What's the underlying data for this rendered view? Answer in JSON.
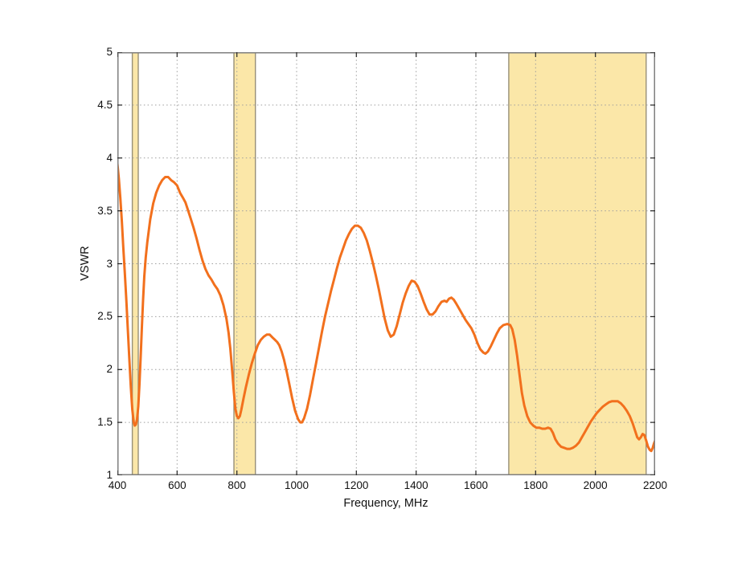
{
  "page": {
    "background": "#ffffff"
  },
  "chart_data": {
    "type": "line",
    "title": "",
    "xlabel": "Frequency, MHz",
    "ylabel": "VSWR",
    "xlim": [
      400,
      2200
    ],
    "ylim": [
      1,
      5
    ],
    "x_ticks": [
      400,
      600,
      800,
      1000,
      1200,
      1400,
      1600,
      1800,
      2000,
      2200
    ],
    "y_ticks": [
      "1",
      "1.5",
      "2",
      "2.5",
      "3",
      "3.5",
      "4",
      "4.5",
      "5"
    ],
    "grid": "dotted",
    "legend_position": "none",
    "colors": {
      "curve": "#F2701D",
      "band_fill": "#FBE7A8",
      "band_edge": "#989078",
      "grid": "#9E9E9E",
      "border": "#7F7F7F",
      "tick": "#222222",
      "text": "#111111"
    },
    "highlight_bands": [
      {
        "from": 450,
        "to": 470
      },
      {
        "from": 790,
        "to": 862
      },
      {
        "from": 1710,
        "to": 2170
      }
    ],
    "series": [
      {
        "name": "VSWR",
        "color": "#F2701D",
        "points": [
          [
            400,
            3.95
          ],
          [
            405,
            3.8
          ],
          [
            410,
            3.62
          ],
          [
            415,
            3.4
          ],
          [
            420,
            3.15
          ],
          [
            425,
            2.91
          ],
          [
            430,
            2.65
          ],
          [
            435,
            2.38
          ],
          [
            440,
            2.1
          ],
          [
            445,
            1.84
          ],
          [
            450,
            1.62
          ],
          [
            455,
            1.5
          ],
          [
            458,
            1.47
          ],
          [
            462,
            1.48
          ],
          [
            466,
            1.53
          ],
          [
            470,
            1.65
          ],
          [
            474,
            1.86
          ],
          [
            478,
            2.12
          ],
          [
            482,
            2.4
          ],
          [
            486,
            2.66
          ],
          [
            490,
            2.88
          ],
          [
            495,
            3.06
          ],
          [
            500,
            3.2
          ],
          [
            510,
            3.42
          ],
          [
            520,
            3.57
          ],
          [
            530,
            3.67
          ],
          [
            540,
            3.74
          ],
          [
            550,
            3.79
          ],
          [
            560,
            3.82
          ],
          [
            570,
            3.82
          ],
          [
            580,
            3.79
          ],
          [
            590,
            3.77
          ],
          [
            600,
            3.74
          ],
          [
            610,
            3.67
          ],
          [
            620,
            3.62
          ],
          [
            628,
            3.58
          ],
          [
            635,
            3.52
          ],
          [
            645,
            3.43
          ],
          [
            655,
            3.34
          ],
          [
            665,
            3.24
          ],
          [
            675,
            3.13
          ],
          [
            685,
            3.03
          ],
          [
            695,
            2.95
          ],
          [
            705,
            2.89
          ],
          [
            715,
            2.85
          ],
          [
            725,
            2.8
          ],
          [
            735,
            2.76
          ],
          [
            745,
            2.7
          ],
          [
            755,
            2.61
          ],
          [
            765,
            2.48
          ],
          [
            772,
            2.35
          ],
          [
            778,
            2.2
          ],
          [
            784,
            2.0
          ],
          [
            790,
            1.78
          ],
          [
            795,
            1.63
          ],
          [
            800,
            1.56
          ],
          [
            805,
            1.54
          ],
          [
            810,
            1.56
          ],
          [
            815,
            1.62
          ],
          [
            822,
            1.72
          ],
          [
            830,
            1.83
          ],
          [
            840,
            1.95
          ],
          [
            850,
            2.06
          ],
          [
            860,
            2.15
          ],
          [
            870,
            2.23
          ],
          [
            880,
            2.28
          ],
          [
            890,
            2.31
          ],
          [
            900,
            2.33
          ],
          [
            910,
            2.33
          ],
          [
            920,
            2.3
          ],
          [
            928,
            2.28
          ],
          [
            935,
            2.26
          ],
          [
            942,
            2.23
          ],
          [
            950,
            2.17
          ],
          [
            958,
            2.09
          ],
          [
            966,
            1.99
          ],
          [
            975,
            1.87
          ],
          [
            985,
            1.73
          ],
          [
            995,
            1.61
          ],
          [
            1005,
            1.53
          ],
          [
            1012,
            1.5
          ],
          [
            1018,
            1.5
          ],
          [
            1025,
            1.54
          ],
          [
            1035,
            1.63
          ],
          [
            1045,
            1.76
          ],
          [
            1055,
            1.91
          ],
          [
            1065,
            2.06
          ],
          [
            1075,
            2.21
          ],
          [
            1085,
            2.36
          ],
          [
            1095,
            2.5
          ],
          [
            1105,
            2.62
          ],
          [
            1115,
            2.74
          ],
          [
            1125,
            2.85
          ],
          [
            1135,
            2.96
          ],
          [
            1145,
            3.06
          ],
          [
            1155,
            3.14
          ],
          [
            1165,
            3.22
          ],
          [
            1175,
            3.28
          ],
          [
            1185,
            3.33
          ],
          [
            1195,
            3.36
          ],
          [
            1205,
            3.36
          ],
          [
            1215,
            3.34
          ],
          [
            1225,
            3.29
          ],
          [
            1235,
            3.22
          ],
          [
            1245,
            3.12
          ],
          [
            1255,
            3.01
          ],
          [
            1265,
            2.89
          ],
          [
            1275,
            2.76
          ],
          [
            1285,
            2.62
          ],
          [
            1295,
            2.48
          ],
          [
            1305,
            2.37
          ],
          [
            1315,
            2.31
          ],
          [
            1325,
            2.33
          ],
          [
            1335,
            2.41
          ],
          [
            1345,
            2.52
          ],
          [
            1355,
            2.63
          ],
          [
            1365,
            2.72
          ],
          [
            1375,
            2.79
          ],
          [
            1385,
            2.84
          ],
          [
            1395,
            2.83
          ],
          [
            1405,
            2.79
          ],
          [
            1415,
            2.72
          ],
          [
            1425,
            2.64
          ],
          [
            1435,
            2.57
          ],
          [
            1445,
            2.52
          ],
          [
            1455,
            2.52
          ],
          [
            1465,
            2.55
          ],
          [
            1475,
            2.6
          ],
          [
            1485,
            2.64
          ],
          [
            1495,
            2.65
          ],
          [
            1502,
            2.64
          ],
          [
            1510,
            2.67
          ],
          [
            1518,
            2.68
          ],
          [
            1526,
            2.66
          ],
          [
            1535,
            2.62
          ],
          [
            1545,
            2.57
          ],
          [
            1555,
            2.52
          ],
          [
            1565,
            2.47
          ],
          [
            1575,
            2.43
          ],
          [
            1585,
            2.39
          ],
          [
            1595,
            2.33
          ],
          [
            1605,
            2.25
          ],
          [
            1615,
            2.19
          ],
          [
            1625,
            2.16
          ],
          [
            1632,
            2.15
          ],
          [
            1640,
            2.17
          ],
          [
            1650,
            2.22
          ],
          [
            1660,
            2.28
          ],
          [
            1670,
            2.34
          ],
          [
            1680,
            2.39
          ],
          [
            1692,
            2.42
          ],
          [
            1705,
            2.43
          ],
          [
            1715,
            2.42
          ],
          [
            1722,
            2.38
          ],
          [
            1730,
            2.28
          ],
          [
            1738,
            2.13
          ],
          [
            1746,
            1.95
          ],
          [
            1754,
            1.78
          ],
          [
            1762,
            1.66
          ],
          [
            1772,
            1.56
          ],
          [
            1782,
            1.5
          ],
          [
            1792,
            1.47
          ],
          [
            1802,
            1.45
          ],
          [
            1812,
            1.45
          ],
          [
            1822,
            1.44
          ],
          [
            1832,
            1.44
          ],
          [
            1842,
            1.45
          ],
          [
            1850,
            1.44
          ],
          [
            1858,
            1.4
          ],
          [
            1866,
            1.34
          ],
          [
            1875,
            1.3
          ],
          [
            1885,
            1.27
          ],
          [
            1895,
            1.26
          ],
          [
            1905,
            1.25
          ],
          [
            1915,
            1.25
          ],
          [
            1925,
            1.26
          ],
          [
            1935,
            1.28
          ],
          [
            1945,
            1.31
          ],
          [
            1955,
            1.36
          ],
          [
            1965,
            1.41
          ],
          [
            1975,
            1.46
          ],
          [
            1985,
            1.51
          ],
          [
            1995,
            1.55
          ],
          [
            2005,
            1.59
          ],
          [
            2015,
            1.62
          ],
          [
            2025,
            1.65
          ],
          [
            2035,
            1.67
          ],
          [
            2045,
            1.69
          ],
          [
            2055,
            1.7
          ],
          [
            2065,
            1.7
          ],
          [
            2075,
            1.7
          ],
          [
            2085,
            1.68
          ],
          [
            2095,
            1.65
          ],
          [
            2105,
            1.61
          ],
          [
            2115,
            1.56
          ],
          [
            2125,
            1.49
          ],
          [
            2133,
            1.42
          ],
          [
            2140,
            1.36
          ],
          [
            2146,
            1.34
          ],
          [
            2152,
            1.36
          ],
          [
            2158,
            1.39
          ],
          [
            2164,
            1.38
          ],
          [
            2170,
            1.33
          ],
          [
            2176,
            1.27
          ],
          [
            2182,
            1.24
          ],
          [
            2187,
            1.23
          ],
          [
            2192,
            1.26
          ],
          [
            2196,
            1.3
          ],
          [
            2200,
            1.33
          ]
        ]
      }
    ]
  }
}
